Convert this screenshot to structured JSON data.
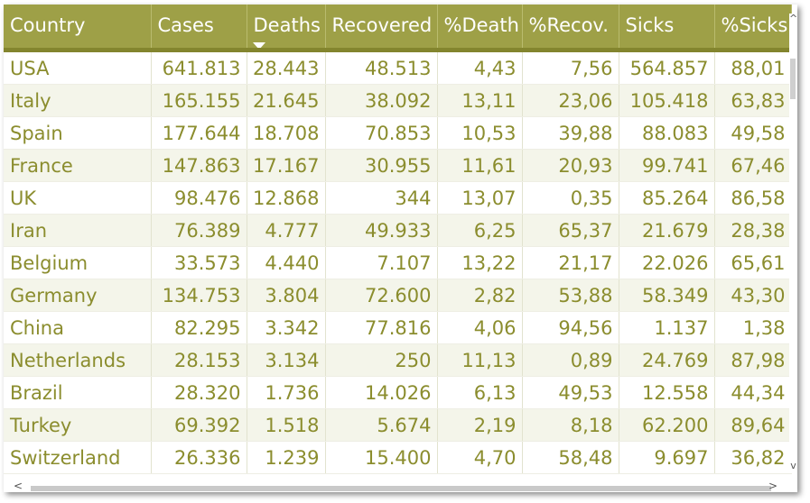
{
  "columns": [
    {
      "label": "Country"
    },
    {
      "label": "Cases"
    },
    {
      "label": "Deaths"
    },
    {
      "label": "Recovered"
    },
    {
      "label": "%Death"
    },
    {
      "label": "%Recov."
    },
    {
      "label": "Sicks"
    },
    {
      "label": "%Sicks"
    }
  ],
  "sorted_column": "Deaths",
  "rows": [
    [
      "USA",
      "641.813",
      "28.443",
      "48.513",
      "4,43",
      "7,56",
      "564.857",
      "88,01"
    ],
    [
      "Italy",
      "165.155",
      "21.645",
      "38.092",
      "13,11",
      "23,06",
      "105.418",
      "63,83"
    ],
    [
      "Spain",
      "177.644",
      "18.708",
      "70.853",
      "10,53",
      "39,88",
      "88.083",
      "49,58"
    ],
    [
      "France",
      "147.863",
      "17.167",
      "30.955",
      "11,61",
      "20,93",
      "99.741",
      "67,46"
    ],
    [
      "UK",
      "98.476",
      "12.868",
      "344",
      "13,07",
      "0,35",
      "85.264",
      "86,58"
    ],
    [
      "Iran",
      "76.389",
      "4.777",
      "49.933",
      "6,25",
      "65,37",
      "21.679",
      "28,38"
    ],
    [
      "Belgium",
      "33.573",
      "4.440",
      "7.107",
      "13,22",
      "21,17",
      "22.026",
      "65,61"
    ],
    [
      "Germany",
      "134.753",
      "3.804",
      "72.600",
      "2,82",
      "53,88",
      "58.349",
      "43,30"
    ],
    [
      "China",
      "82.295",
      "3.342",
      "77.816",
      "4,06",
      "94,56",
      "1.137",
      "1,38"
    ],
    [
      "Netherlands",
      "28.153",
      "3.134",
      "250",
      "11,13",
      "0,89",
      "24.769",
      "87,98"
    ],
    [
      "Brazil",
      "28.320",
      "1.736",
      "14.026",
      "6,13",
      "49,53",
      "12.558",
      "44,34"
    ],
    [
      "Turkey",
      "69.392",
      "1.518",
      "5.674",
      "2,19",
      "8,18",
      "62.200",
      "89,64"
    ],
    [
      "Switzerland",
      "26.336",
      "1.239",
      "15.400",
      "4,70",
      "58,48",
      "9.697",
      "36,82"
    ]
  ],
  "colors": {
    "header_bg": "#9ea047",
    "header_text": "#ffffff",
    "cell_text": "#8b8d2e",
    "alt_row_bg": "#f4f5ea"
  },
  "scrollbar": {
    "up_arrow": "^",
    "down_arrow": "v",
    "left_arrow": "<",
    "right_arrow": ">"
  }
}
